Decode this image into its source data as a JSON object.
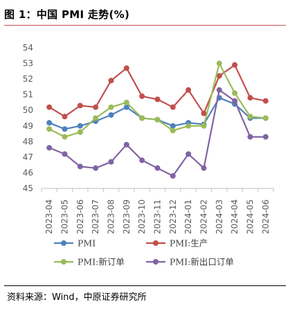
{
  "title": "图 1：中国 PMI 走势(%)",
  "source": "资料来源：Wind，中原证券研究所",
  "chart_data": {
    "type": "line",
    "categories": [
      "2023-04",
      "2023-05",
      "2023-06",
      "2023-07",
      "2023-08",
      "2023-09",
      "2023-10",
      "2023-11",
      "2023-12",
      "2024-01",
      "2024-02",
      "2024-03",
      "2024-04",
      "2024-05",
      "2024-06"
    ],
    "ylim": [
      45,
      54
    ],
    "yticks": [
      45,
      46,
      47,
      48,
      49,
      50,
      51,
      52,
      53,
      54
    ],
    "grid": false,
    "legend_position": "bottom",
    "series": [
      {
        "name": "PMI",
        "color": "#4f81bd",
        "values": [
          49.2,
          48.8,
          49.0,
          49.3,
          49.7,
          50.2,
          49.5,
          49.4,
          49.0,
          49.2,
          49.1,
          50.8,
          50.4,
          49.5,
          49.5
        ]
      },
      {
        "name": "PMI:生产",
        "color": "#c0504d",
        "values": [
          50.2,
          49.6,
          50.3,
          50.2,
          51.9,
          52.7,
          50.9,
          50.7,
          50.2,
          51.3,
          49.8,
          52.2,
          52.9,
          50.8,
          50.6
        ]
      },
      {
        "name": "PMI:新订单",
        "color": "#9bbb59",
        "values": [
          48.8,
          48.3,
          48.6,
          49.5,
          50.2,
          50.5,
          49.5,
          49.4,
          48.7,
          49.0,
          49.0,
          53.0,
          51.1,
          49.6,
          49.5
        ]
      },
      {
        "name": "PMI:新出口订单",
        "color": "#8064a2",
        "values": [
          47.6,
          47.2,
          46.4,
          46.3,
          46.7,
          47.8,
          46.8,
          46.3,
          45.8,
          47.2,
          46.3,
          51.3,
          50.6,
          48.3,
          48.3
        ]
      }
    ]
  }
}
